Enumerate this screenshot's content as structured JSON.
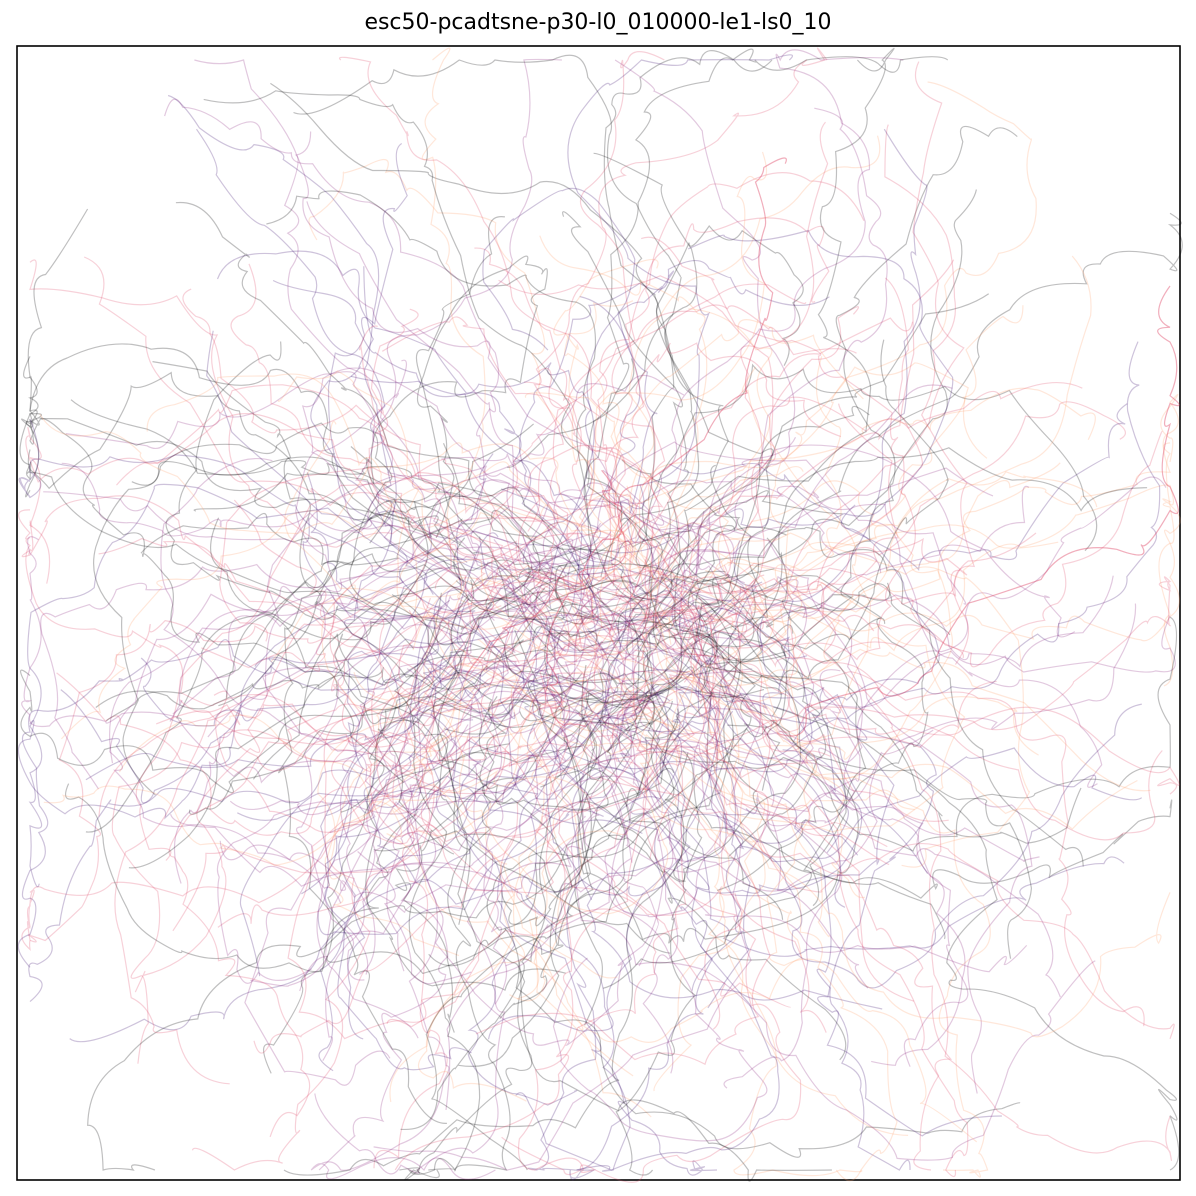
{
  "chart_data": {
    "type": "line",
    "title": "esc50-pcadtsne-p30-l0_010000-le1-ls0_10",
    "xlabel": "",
    "ylabel": "",
    "grid": false,
    "legend": "none",
    "axes_ticks": "none",
    "colormap_colors": [
      "#000004",
      "#3b0f70",
      "#8c2981",
      "#de4968",
      "#fe9f6d",
      "#fcfdbf"
    ],
    "line_alpha": 0.25,
    "note_values": "trajectory coordinates are not printed on the figure",
    "series_count_approx": 400
  }
}
